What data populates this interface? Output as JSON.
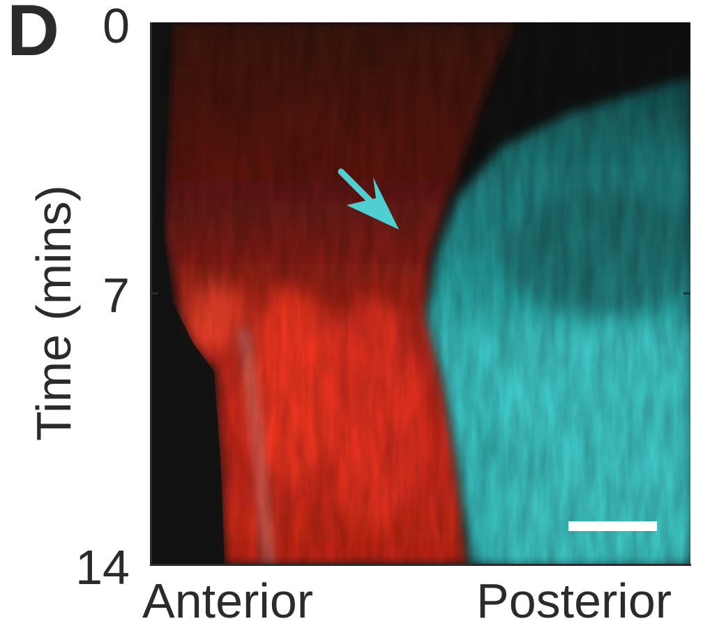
{
  "panel": {
    "letter": "D"
  },
  "y_axis": {
    "title": "Time (mins)",
    "ticks": [
      "0",
      "7",
      "14"
    ]
  },
  "x_axis": {
    "left_label": "Anterior",
    "right_label": "Posterior"
  },
  "colors": {
    "anterior_signal": "#e8321e",
    "posterior_signal": "#3ec9c9",
    "arrow": "#4fcfcf",
    "background": "#111111",
    "scale_bar": "#ffffff"
  },
  "icons": {
    "arrow": "cyan-arrow-icon",
    "scale_bar": "scale-bar"
  }
}
